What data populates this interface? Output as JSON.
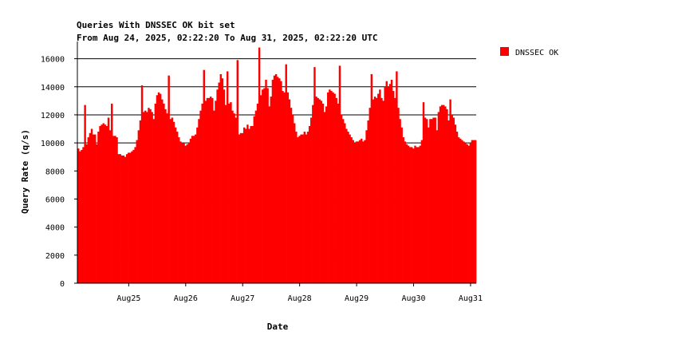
{
  "chart_data": {
    "type": "bar",
    "title": "Queries With DNSSEC OK bit set",
    "subtitle": "From Aug 24, 2025, 02:22:20 To Aug 31, 2025, 02:22:20 UTC",
    "xlabel": "Date",
    "ylabel": "Query Rate (q/s)",
    "ylim": [
      0,
      17000
    ],
    "yticks": [
      0,
      2000,
      4000,
      6000,
      8000,
      10000,
      12000,
      14000,
      16000
    ],
    "xticks": [
      "Aug25",
      "Aug26",
      "Aug27",
      "Aug28",
      "Aug29",
      "Aug30",
      "Aug31"
    ],
    "grid": true,
    "legend_position": "right",
    "series": [
      {
        "name": "DNSSEC OK",
        "color": "#ff0000",
        "values": [
          9600,
          9400,
          9500,
          9700,
          12700,
          9900,
          10400,
          10700,
          11000,
          10600,
          10600,
          9900,
          10800,
          11200,
          11300,
          11400,
          11300,
          11200,
          11800,
          10900,
          12800,
          10500,
          10500,
          10400,
          9200,
          9200,
          9100,
          9100,
          9000,
          9200,
          9300,
          9300,
          9400,
          9500,
          9700,
          10200,
          10900,
          11600,
          14100,
          12200,
          12300,
          12200,
          12500,
          12400,
          12200,
          11700,
          12800,
          13400,
          13600,
          13500,
          13100,
          12800,
          12400,
          12100,
          14800,
          11700,
          11800,
          11500,
          11100,
          10800,
          10400,
          10100,
          10000,
          10000,
          9800,
          9900,
          10000,
          10300,
          10500,
          10500,
          10600,
          11100,
          11700,
          12300,
          12800,
          15200,
          13000,
          13200,
          13200,
          13300,
          13200,
          12300,
          13000,
          13800,
          14300,
          14900,
          14600,
          13800,
          12700,
          15100,
          12800,
          12900,
          12300,
          12100,
          11800,
          15900,
          10600,
          10700,
          10700,
          11100,
          11000,
          11300,
          11000,
          11200,
          11200,
          11900,
          12300,
          12800,
          16800,
          13400,
          13800,
          13900,
          14500,
          13900,
          12600,
          13300,
          14500,
          14800,
          14900,
          14700,
          14600,
          14400,
          13700,
          13600,
          15600,
          13600,
          13100,
          12500,
          12000,
          11400,
          10800,
          10400,
          10500,
          10600,
          10600,
          10800,
          10600,
          10800,
          11200,
          11800,
          12700,
          15400,
          13300,
          13200,
          13100,
          13000,
          12800,
          12200,
          12600,
          13600,
          13800,
          13700,
          13600,
          13500,
          13200,
          12800,
          15500,
          12000,
          11700,
          11400,
          11000,
          10800,
          10600,
          10400,
          10200,
          10000,
          10100,
          10100,
          10200,
          10300,
          10100,
          10200,
          10900,
          11600,
          12500,
          14900,
          13100,
          13300,
          13200,
          13500,
          13800,
          13200,
          13000,
          14000,
          14400,
          14000,
          14200,
          14500,
          13700,
          13200,
          15100,
          12500,
          11700,
          11100,
          10400,
          10100,
          9900,
          9800,
          9700,
          9700,
          9600,
          9800,
          9700,
          9700,
          9800,
          10200,
          12900,
          11800,
          11700,
          11100,
          11700,
          11700,
          11800,
          11800,
          10900,
          12200,
          12600,
          12700,
          12700,
          12600,
          12400,
          11600,
          13100,
          12000,
          11800,
          11300,
          10800,
          10400,
          10300,
          10200,
          10100,
          10000,
          9900,
          9800,
          10000,
          10200,
          10200,
          10200
        ]
      }
    ]
  }
}
